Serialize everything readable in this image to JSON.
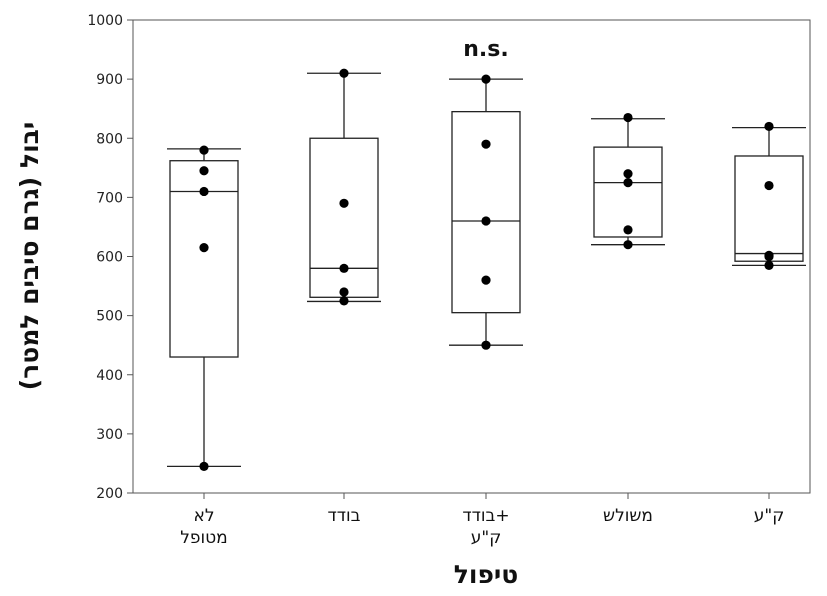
{
  "chart_data": {
    "type": "boxplot",
    "title": "",
    "annotation": "n.s.",
    "ylabel": "יבול (גרם סיבים למטר)",
    "xlabel": "טיפול",
    "ylim": [
      200,
      1000
    ],
    "yticks": [
      200,
      300,
      400,
      500,
      600,
      700,
      800,
      900,
      1000
    ],
    "categories": [
      [
        "לא",
        "מטופל"
      ],
      [
        "בודד"
      ],
      [
        "בודד+",
        "ק\"ע"
      ],
      [
        "משולש"
      ],
      [
        "ק\"ע"
      ]
    ],
    "boxes": [
      {
        "whisker_low": 245,
        "q1": 430,
        "median": 710,
        "q3": 762,
        "whisker_high": 782,
        "points": [
          245,
          615,
          710,
          745,
          780
        ]
      },
      {
        "whisker_low": 524,
        "q1": 531,
        "median": 580,
        "q3": 800,
        "whisker_high": 910,
        "points": [
          525,
          540,
          580,
          690,
          910
        ]
      },
      {
        "whisker_low": 450,
        "q1": 505,
        "median": 660,
        "q3": 845,
        "whisker_high": 900,
        "points": [
          450,
          560,
          660,
          790,
          900
        ]
      },
      {
        "whisker_low": 620,
        "q1": 633,
        "median": 725,
        "q3": 785,
        "whisker_high": 833,
        "points": [
          620,
          645,
          725,
          740,
          835
        ]
      },
      {
        "whisker_low": 585,
        "q1": 592,
        "median": 605,
        "q3": 770,
        "whisker_high": 818,
        "points": [
          585,
          600,
          602,
          720,
          820
        ]
      }
    ],
    "grid": false,
    "colors": {
      "box": "#ffffff",
      "stroke": "#222222",
      "point": "#000000"
    }
  }
}
